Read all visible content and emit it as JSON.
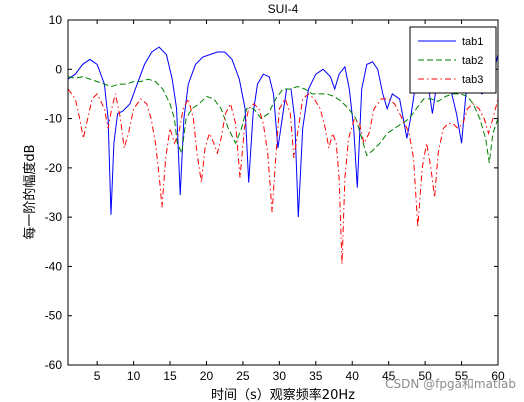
{
  "watermark": "CSDN @fpga和matlab",
  "colors": {
    "tab1": "#0000ff",
    "tab2": "#008000",
    "tab3": "#ff0000",
    "axes": "#000000",
    "background": "#ffffff"
  },
  "chart_data": {
    "type": "line",
    "title": "SUI-4",
    "xlabel": "时间（s）观察频率20Hz",
    "ylabel": "每一阶的幅度dB",
    "xlim": [
      1,
      60
    ],
    "ylim": [
      -60,
      10
    ],
    "xticks": [
      5,
      10,
      15,
      20,
      25,
      30,
      35,
      40,
      45,
      50,
      55,
      60
    ],
    "yticks": [
      10,
      0,
      -10,
      -20,
      -30,
      -40,
      -50,
      -60
    ],
    "grid": false,
    "legend_position": "top-right",
    "series": [
      {
        "name": "tab1",
        "color": "#0000ff",
        "line_style": "solid",
        "points": [
          [
            1,
            -2
          ],
          [
            2,
            -1
          ],
          [
            3,
            1
          ],
          [
            4,
            2
          ],
          [
            5,
            1
          ],
          [
            6,
            -3
          ],
          [
            6.5,
            -10
          ],
          [
            6.9,
            -29.5
          ],
          [
            7.3,
            -15
          ],
          [
            7.8,
            -9
          ],
          [
            8.5,
            -8.5
          ],
          [
            9.5,
            -7
          ],
          [
            10.5,
            -3
          ],
          [
            11.5,
            1
          ],
          [
            12.5,
            3.5
          ],
          [
            13.5,
            4.5
          ],
          [
            14.5,
            3
          ],
          [
            15.3,
            -2
          ],
          [
            15.9,
            -8
          ],
          [
            16.4,
            -25.5
          ],
          [
            16.9,
            -10
          ],
          [
            17.5,
            -3
          ],
          [
            18.5,
            1
          ],
          [
            19.5,
            2.5
          ],
          [
            20.5,
            3
          ],
          [
            21.5,
            3.5
          ],
          [
            22.5,
            3.5
          ],
          [
            23.5,
            2
          ],
          [
            24.5,
            -2
          ],
          [
            25.3,
            -8
          ],
          [
            25.8,
            -23
          ],
          [
            26.4,
            -9
          ],
          [
            27,
            -3
          ],
          [
            27.8,
            -1
          ],
          [
            28.6,
            -1.5
          ],
          [
            29.2,
            -5
          ],
          [
            29.8,
            -16
          ],
          [
            30.3,
            -11
          ],
          [
            31,
            -4
          ],
          [
            31.6,
            -4
          ],
          [
            32.1,
            -10
          ],
          [
            32.6,
            -30
          ],
          [
            33.2,
            -12
          ],
          [
            34,
            -4
          ],
          [
            35,
            -1
          ],
          [
            36,
            0
          ],
          [
            37,
            -1.5
          ],
          [
            37.6,
            -4
          ],
          [
            38.2,
            -1
          ],
          [
            39,
            0.5
          ],
          [
            39.6,
            -4
          ],
          [
            40.2,
            -12
          ],
          [
            40.7,
            -24
          ],
          [
            41.3,
            -4
          ],
          [
            42,
            1
          ],
          [
            42.8,
            1.5
          ],
          [
            43.5,
            0
          ],
          [
            44.2,
            -5
          ],
          [
            44.8,
            -8
          ],
          [
            45.5,
            -5
          ],
          [
            46.5,
            -6
          ],
          [
            47.5,
            -14
          ],
          [
            48,
            -10
          ],
          [
            48.6,
            -4
          ],
          [
            49.5,
            -1
          ],
          [
            50.3,
            -2
          ],
          [
            51,
            -9
          ],
          [
            51.7,
            -2
          ],
          [
            52.6,
            -1
          ],
          [
            53.5,
            -4
          ],
          [
            54.3,
            -9
          ],
          [
            55,
            -15
          ],
          [
            55.6,
            -5
          ],
          [
            56.3,
            -4
          ],
          [
            57,
            -4
          ],
          [
            57.8,
            -5
          ],
          [
            58.5,
            -4
          ],
          [
            59.2,
            -2
          ],
          [
            60,
            3
          ]
        ]
      },
      {
        "name": "tab2",
        "color": "#008000",
        "line_style": "dashed",
        "points": [
          [
            1,
            -1.5
          ],
          [
            2,
            -1.8
          ],
          [
            3,
            -1.5
          ],
          [
            4,
            -2
          ],
          [
            5,
            -2.5
          ],
          [
            6,
            -3
          ],
          [
            7,
            -3.5
          ],
          [
            8,
            -3
          ],
          [
            9,
            -3
          ],
          [
            10,
            -2.5
          ],
          [
            11,
            -2.5
          ],
          [
            12,
            -2
          ],
          [
            13,
            -2.5
          ],
          [
            14,
            -4
          ],
          [
            15,
            -7
          ],
          [
            15.6,
            -10
          ],
          [
            16,
            -15
          ],
          [
            16.6,
            -17
          ],
          [
            17.2,
            -10
          ],
          [
            18,
            -8
          ],
          [
            19,
            -7
          ],
          [
            20,
            -5.5
          ],
          [
            21,
            -6
          ],
          [
            22,
            -8
          ],
          [
            23,
            -12
          ],
          [
            24,
            -15
          ],
          [
            24.8,
            -12
          ],
          [
            25.5,
            -8
          ],
          [
            26.5,
            -8
          ],
          [
            27.5,
            -10
          ],
          [
            28.5,
            -9
          ],
          [
            29.5,
            -6
          ],
          [
            30.5,
            -4
          ],
          [
            31.5,
            -4
          ],
          [
            32.5,
            -3.5
          ],
          [
            33.5,
            -4
          ],
          [
            34.5,
            -5
          ],
          [
            35.5,
            -5
          ],
          [
            36.5,
            -5
          ],
          [
            37.5,
            -5.5
          ],
          [
            38.5,
            -6.5
          ],
          [
            39.5,
            -8
          ],
          [
            40.5,
            -10
          ],
          [
            41.5,
            -15
          ],
          [
            42,
            -17.5
          ],
          [
            42.8,
            -16.5
          ],
          [
            43.8,
            -15
          ],
          [
            44.8,
            -13
          ],
          [
            45.8,
            -12
          ],
          [
            46.8,
            -11
          ],
          [
            47.8,
            -10
          ],
          [
            48.8,
            -8
          ],
          [
            49.8,
            -6
          ],
          [
            50.8,
            -6
          ],
          [
            51.8,
            -6.5
          ],
          [
            52.8,
            -5.5
          ],
          [
            53.8,
            -5
          ],
          [
            54.8,
            -5
          ],
          [
            55.8,
            -5.5
          ],
          [
            56.6,
            -7
          ],
          [
            57.5,
            -10
          ],
          [
            58.3,
            -14
          ],
          [
            58.8,
            -19
          ],
          [
            59.3,
            -13
          ],
          [
            60,
            -10
          ]
        ]
      },
      {
        "name": "tab3",
        "color": "#ff0000",
        "line_style": "dash-dot",
        "points": [
          [
            1,
            -4
          ],
          [
            2,
            -6
          ],
          [
            2.6,
            -10
          ],
          [
            3.1,
            -14
          ],
          [
            3.7,
            -10
          ],
          [
            4.3,
            -6
          ],
          [
            5,
            -5
          ],
          [
            6,
            -8
          ],
          [
            6.5,
            -12
          ],
          [
            7,
            -8
          ],
          [
            7.5,
            -5
          ],
          [
            8.2,
            -10
          ],
          [
            8.7,
            -16
          ],
          [
            9.3,
            -13
          ],
          [
            10,
            -8
          ],
          [
            11,
            -6
          ],
          [
            11.8,
            -7
          ],
          [
            12.4,
            -10
          ],
          [
            13,
            -15
          ],
          [
            13.6,
            -23
          ],
          [
            13.9,
            -28
          ],
          [
            14.4,
            -18
          ],
          [
            15,
            -12
          ],
          [
            15.6,
            -15
          ],
          [
            16.2,
            -13
          ],
          [
            16.8,
            -8
          ],
          [
            17.5,
            -6
          ],
          [
            18.2,
            -10
          ],
          [
            18.7,
            -17
          ],
          [
            19.3,
            -23
          ],
          [
            19.8,
            -16
          ],
          [
            20.4,
            -13
          ],
          [
            21,
            -15
          ],
          [
            21.5,
            -17
          ],
          [
            22,
            -14
          ],
          [
            22.6,
            -9
          ],
          [
            23.3,
            -7
          ],
          [
            24,
            -11
          ],
          [
            24.6,
            -22
          ],
          [
            25.2,
            -12
          ],
          [
            25.8,
            -8
          ],
          [
            26.5,
            -7
          ],
          [
            27.2,
            -8
          ],
          [
            27.8,
            -11
          ],
          [
            28.4,
            -17
          ],
          [
            29,
            -29
          ],
          [
            29.5,
            -18
          ],
          [
            30,
            -8
          ],
          [
            30.8,
            -6
          ],
          [
            31.5,
            -9
          ],
          [
            32,
            -18
          ],
          [
            32.6,
            -12
          ],
          [
            33.2,
            -6
          ],
          [
            34,
            -5
          ],
          [
            34.8,
            -6
          ],
          [
            35.6,
            -8
          ],
          [
            36.3,
            -12
          ],
          [
            36.8,
            -16
          ],
          [
            37.3,
            -13
          ],
          [
            37.8,
            -15
          ],
          [
            38.2,
            -22
          ],
          [
            38.6,
            -39.5
          ],
          [
            39,
            -22
          ],
          [
            39.5,
            -14
          ],
          [
            40.3,
            -10
          ],
          [
            41,
            -11
          ],
          [
            41.6,
            -15
          ],
          [
            42.3,
            -13
          ],
          [
            43,
            -8
          ],
          [
            44,
            -6
          ],
          [
            45,
            -6
          ],
          [
            45.8,
            -7
          ],
          [
            46.5,
            -9
          ],
          [
            47.2,
            -11
          ],
          [
            47.8,
            -13
          ],
          [
            48.4,
            -18
          ],
          [
            49,
            -32
          ],
          [
            49.6,
            -20
          ],
          [
            50.2,
            -15
          ],
          [
            50.8,
            -20
          ],
          [
            51.3,
            -26
          ],
          [
            51.8,
            -17
          ],
          [
            52.5,
            -12
          ],
          [
            53.2,
            -11
          ],
          [
            53.8,
            -11
          ],
          [
            54.5,
            -12
          ],
          [
            55.2,
            -11
          ],
          [
            55.8,
            -8
          ],
          [
            56.6,
            -7
          ],
          [
            57.4,
            -8
          ],
          [
            58.1,
            -10
          ],
          [
            58.7,
            -13
          ],
          [
            59.3,
            -10
          ],
          [
            60,
            -6
          ]
        ]
      }
    ]
  }
}
